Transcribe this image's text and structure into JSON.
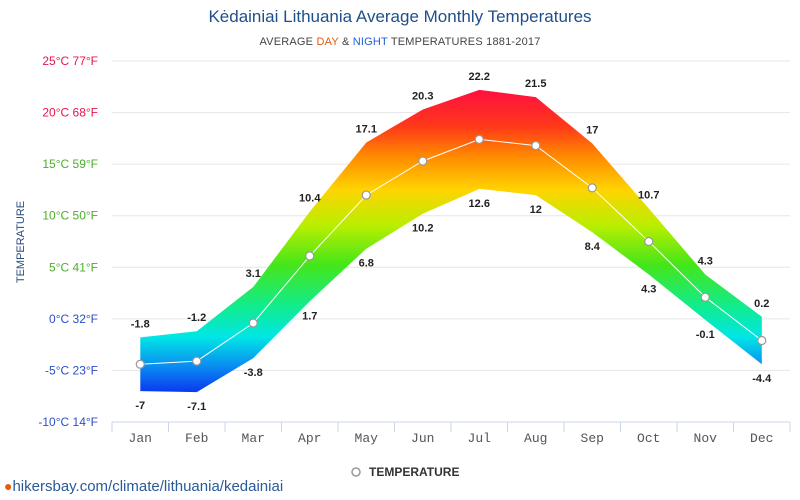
{
  "header": {
    "title": "Kėdainiai Lithuania Average Monthly Temperatures",
    "subtitle_prefix": "AVERAGE ",
    "subtitle_day": "DAY",
    "subtitle_amp": " & ",
    "subtitle_night": "NIGHT",
    "subtitle_suffix": " TEMPERATURES 1881-2017"
  },
  "footer": {
    "url": "hikersbay.com/climate/lithuania/kedainiai"
  },
  "colors": {
    "title": "#1f4f8a",
    "day": "#e8590c",
    "night": "#1f5fd6",
    "line": "#ffffff",
    "marker_stroke": "#999999"
  },
  "chart_data": {
    "type": "area",
    "ylabel": "TEMPERATURE",
    "ylim": [
      -10,
      25
    ],
    "grid": true,
    "legend_position": "bottom",
    "y_ticks": [
      {
        "value": 25,
        "label": "25°C 77°F",
        "color": "#e6164e"
      },
      {
        "value": 20,
        "label": "20°C 68°F",
        "color": "#e6164e"
      },
      {
        "value": 15,
        "label": "15°C 59°F",
        "color": "#4cae2a"
      },
      {
        "value": 10,
        "label": "10°C 50°F",
        "color": "#4cae2a"
      },
      {
        "value": 5,
        "label": "5°C 41°F",
        "color": "#4cae2a"
      },
      {
        "value": 0,
        "label": "0°C 32°F",
        "color": "#2a4fc8"
      },
      {
        "value": -5,
        "label": "-5°C 23°F",
        "color": "#2a4fc8"
      },
      {
        "value": -10,
        "label": "-10°C 14°F",
        "color": "#2a4fc8"
      }
    ],
    "categories": [
      "Jan",
      "Feb",
      "Mar",
      "Apr",
      "May",
      "Jun",
      "Jul",
      "Aug",
      "Sep",
      "Oct",
      "Nov",
      "Dec"
    ],
    "series": [
      {
        "name": "DAY",
        "values": [
          -1.8,
          -1.2,
          3.1,
          10.4,
          17.1,
          20.3,
          22.2,
          21.5,
          17,
          10.7,
          4.3,
          0.2
        ]
      },
      {
        "name": "NIGHT",
        "values": [
          -7,
          -7.1,
          -3.8,
          1.7,
          6.8,
          10.2,
          12.6,
          12,
          8.4,
          4.3,
          -0.1,
          -4.4
        ]
      },
      {
        "name": "TEMPERATURE",
        "values": [
          -4.4,
          -4.1,
          -0.4,
          6.1,
          12,
          15.3,
          17.4,
          16.8,
          12.7,
          7.5,
          2.1,
          -2.1
        ]
      }
    ],
    "day_labels": [
      "-1.8",
      "-1.2",
      "3.1",
      "10.4",
      "17.1",
      "20.3",
      "22.2",
      "21.5",
      "17",
      "10.7",
      "4.3",
      "0.2"
    ],
    "night_labels": [
      "-7",
      "-7.1",
      "-3.8",
      "1.7",
      "6.8",
      "10.2",
      "12.6",
      "12",
      "8.4",
      "4.3",
      "-0.1",
      "-4.4"
    ]
  }
}
